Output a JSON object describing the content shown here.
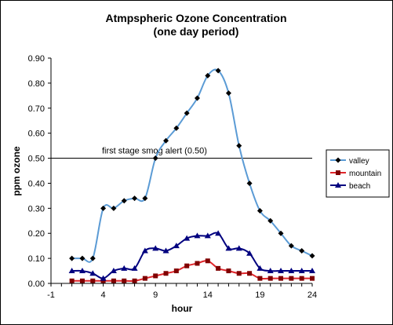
{
  "chart_data": {
    "type": "line",
    "title": "Atmpspheric Ozone Concentration",
    "subtitle": "(one day period)",
    "xlabel": "hour",
    "ylabel": "ppm ozone",
    "xlim": [
      -1,
      24
    ],
    "ylim": [
      0,
      0.9
    ],
    "x_ticks": [
      "-1",
      "4",
      "9",
      "14",
      "19",
      "24"
    ],
    "y_ticks": [
      "0.00",
      "0.10",
      "0.20",
      "0.30",
      "0.40",
      "0.50",
      "0.60",
      "0.70",
      "0.80",
      "0.90"
    ],
    "grid": false,
    "legend_position": "right",
    "x": [
      1,
      2,
      3,
      4,
      5,
      6,
      7,
      8,
      9,
      10,
      11,
      12,
      13,
      14,
      15,
      16,
      17,
      18,
      19,
      20,
      21,
      22,
      23,
      24
    ],
    "series": [
      {
        "name": "valley",
        "color": "#5B9BD5",
        "marker": "diamond",
        "values": [
          0.1,
          0.1,
          0.1,
          0.3,
          0.3,
          0.33,
          0.34,
          0.34,
          0.5,
          0.57,
          0.62,
          0.68,
          0.74,
          0.83,
          0.85,
          0.76,
          0.55,
          0.4,
          0.29,
          0.25,
          0.2,
          0.15,
          0.13,
          0.11
        ]
      },
      {
        "name": "mountain",
        "color": "#E0262B",
        "marker": "square",
        "values": [
          0.01,
          0.01,
          0.01,
          0.01,
          0.01,
          0.01,
          0.01,
          0.02,
          0.03,
          0.04,
          0.05,
          0.07,
          0.08,
          0.09,
          0.06,
          0.05,
          0.04,
          0.04,
          0.02,
          0.02,
          0.02,
          0.02,
          0.02,
          0.02
        ]
      },
      {
        "name": "beach",
        "color": "#00007F",
        "marker": "triangle",
        "values": [
          0.05,
          0.05,
          0.04,
          0.02,
          0.05,
          0.06,
          0.06,
          0.13,
          0.14,
          0.13,
          0.15,
          0.18,
          0.19,
          0.19,
          0.2,
          0.14,
          0.14,
          0.12,
          0.06,
          0.05,
          0.05,
          0.05,
          0.05,
          0.05
        ]
      }
    ],
    "annotation": {
      "text": "first stage smog alert (0.50)",
      "value": 0.5
    }
  }
}
